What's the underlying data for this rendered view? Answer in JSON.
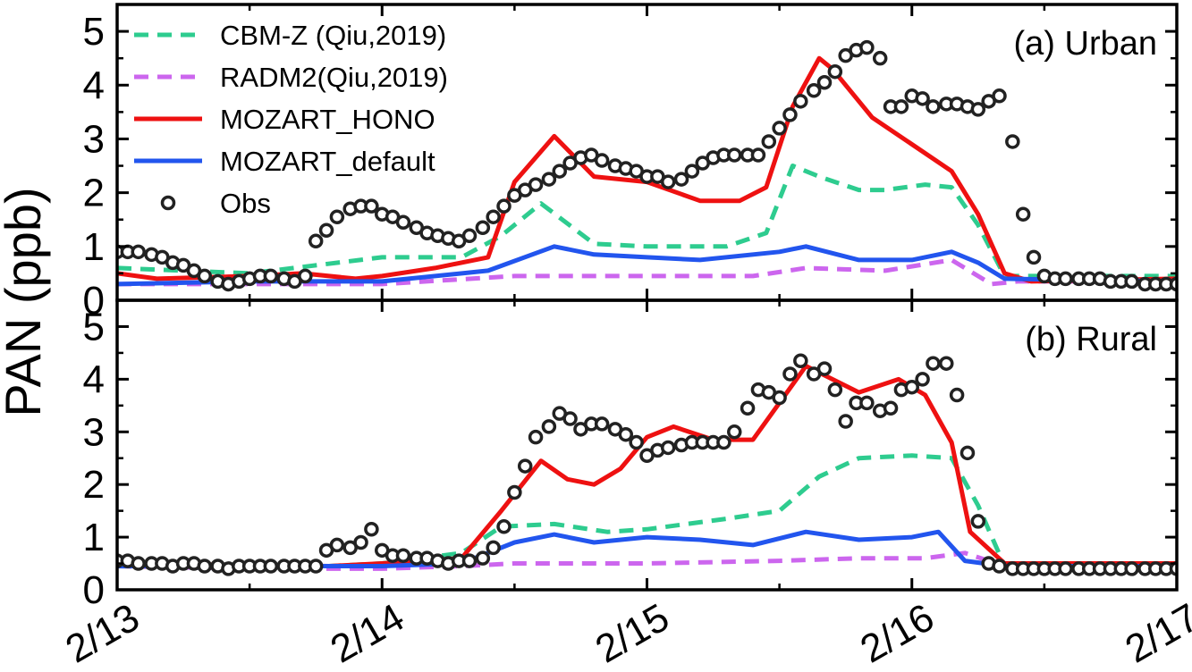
{
  "chart_data": {
    "type": "line",
    "ylabel": "PAN  (ppb)",
    "x_ticks": [
      "2/13",
      "2/14",
      "2/15",
      "2/16",
      "2/17"
    ],
    "xlim": [
      0,
      4
    ],
    "ylim": [
      0,
      5.5
    ],
    "y_ticks": [
      0,
      1,
      2,
      3,
      4,
      5
    ],
    "legend": {
      "placement": "top-left",
      "entries": [
        {
          "label": "CBM-Z (Qiu,2019)",
          "color": "#2ecc8f",
          "style": "dashed"
        },
        {
          "label": "RADM2(Qiu,2019)",
          "color": "#cc66ee",
          "style": "dashed"
        },
        {
          "label": "MOZART_HONO",
          "color": "#ee1111",
          "style": "solid"
        },
        {
          "label": "MOZART_default",
          "color": "#2255ee",
          "style": "solid"
        },
        {
          "label": "Obs",
          "color": "#222222",
          "style": "marker"
        }
      ]
    },
    "panels": [
      {
        "label": "(a) Urban",
        "series": [
          {
            "name": "CBM-Z (Qiu,2019)",
            "color": "#2ecc8f",
            "style": "dashed",
            "x": [
              0,
              0.5,
              1.0,
              1.3,
              1.45,
              1.6,
              1.8,
              2.0,
              2.3,
              2.45,
              2.55,
              2.65,
              2.8,
              2.9,
              3.05,
              3.15,
              3.25,
              3.35,
              4.0
            ],
            "y": [
              0.6,
              0.5,
              0.8,
              0.8,
              1.2,
              1.8,
              1.05,
              1.0,
              1.0,
              1.25,
              2.5,
              2.3,
              2.05,
              2.05,
              2.15,
              2.1,
              1.4,
              0.45,
              0.45
            ]
          },
          {
            "name": "RADM2(Qiu,2019)",
            "color": "#cc66ee",
            "style": "dashed",
            "x": [
              0,
              0.5,
              1.0,
              1.5,
              2.0,
              2.4,
              2.6,
              2.9,
              3.15,
              3.3,
              3.4,
              4.0
            ],
            "y": [
              0.3,
              0.3,
              0.3,
              0.45,
              0.45,
              0.45,
              0.6,
              0.55,
              0.75,
              0.3,
              0.35,
              0.35
            ]
          },
          {
            "name": "MOZART_HONO",
            "color": "#ee1111",
            "style": "solid",
            "x": [
              0,
              0.15,
              0.5,
              0.7,
              0.9,
              1.0,
              1.2,
              1.4,
              1.5,
              1.65,
              1.8,
              2.0,
              2.2,
              2.35,
              2.45,
              2.55,
              2.65,
              2.7,
              2.85,
              3.0,
              3.15,
              3.25,
              3.35,
              3.45,
              4.0
            ],
            "y": [
              0.5,
              0.4,
              0.45,
              0.5,
              0.4,
              0.45,
              0.6,
              0.8,
              2.2,
              3.05,
              2.3,
              2.2,
              1.85,
              1.85,
              2.1,
              3.6,
              4.5,
              4.3,
              3.4,
              2.9,
              2.4,
              1.6,
              0.5,
              0.35,
              0.4
            ]
          },
          {
            "name": "MOZART_default",
            "color": "#2255ee",
            "style": "solid",
            "x": [
              0,
              0.5,
              1.0,
              1.4,
              1.65,
              1.8,
              2.0,
              2.2,
              2.5,
              2.6,
              2.8,
              3.0,
              3.15,
              3.25,
              3.35,
              4.0
            ],
            "y": [
              0.3,
              0.35,
              0.35,
              0.55,
              1.0,
              0.85,
              0.8,
              0.75,
              0.9,
              1.0,
              0.75,
              0.75,
              0.9,
              0.7,
              0.4,
              0.35
            ]
          },
          {
            "name": "Obs",
            "color": "#222222",
            "style": "marker",
            "x": [
              0.0,
              0.04,
              0.08,
              0.13,
              0.17,
              0.21,
              0.25,
              0.29,
              0.33,
              0.38,
              0.42,
              0.46,
              0.5,
              0.54,
              0.58,
              0.63,
              0.67,
              0.71,
              0.75,
              0.79,
              0.83,
              0.88,
              0.92,
              0.96,
              1.0,
              1.04,
              1.08,
              1.13,
              1.17,
              1.21,
              1.25,
              1.29,
              1.33,
              1.38,
              1.42,
              1.46,
              1.5,
              1.54,
              1.58,
              1.63,
              1.67,
              1.71,
              1.75,
              1.79,
              1.83,
              1.88,
              1.92,
              1.96,
              2.0,
              2.04,
              2.08,
              2.13,
              2.17,
              2.21,
              2.25,
              2.29,
              2.33,
              2.38,
              2.42,
              2.46,
              2.5,
              2.54,
              2.58,
              2.63,
              2.67,
              2.71,
              2.75,
              2.79,
              2.83,
              2.88,
              2.92,
              2.96,
              3.0,
              3.04,
              3.08,
              3.13,
              3.17,
              3.21,
              3.25,
              3.29,
              3.33,
              3.38,
              3.42,
              3.46,
              3.5,
              3.54,
              3.58,
              3.63,
              3.67,
              3.71,
              3.75,
              3.79,
              3.83,
              3.88,
              3.92,
              3.96,
              4.0
            ],
            "y": [
              0.9,
              0.9,
              0.9,
              0.85,
              0.8,
              0.7,
              0.65,
              0.55,
              0.45,
              0.35,
              0.3,
              0.35,
              0.4,
              0.45,
              0.45,
              0.4,
              0.35,
              0.45,
              1.1,
              1.3,
              1.55,
              1.7,
              1.75,
              1.75,
              1.6,
              1.55,
              1.45,
              1.35,
              1.25,
              1.2,
              1.15,
              1.1,
              1.2,
              1.35,
              1.55,
              1.75,
              1.95,
              2.05,
              2.15,
              2.25,
              2.4,
              2.55,
              2.65,
              2.7,
              2.6,
              2.5,
              2.45,
              2.4,
              2.3,
              2.3,
              2.2,
              2.25,
              2.4,
              2.55,
              2.65,
              2.7,
              2.7,
              2.7,
              2.7,
              2.95,
              3.2,
              3.45,
              3.7,
              3.9,
              4.05,
              4.25,
              4.55,
              4.65,
              4.7,
              4.5,
              3.6,
              3.6,
              3.8,
              3.75,
              3.6,
              3.65,
              3.65,
              3.6,
              3.55,
              3.7,
              3.8,
              2.95,
              1.6,
              0.8,
              0.45,
              0.4,
              0.4,
              0.4,
              0.4,
              0.4,
              0.35,
              0.35,
              0.35,
              0.3,
              0.3,
              0.3,
              0.3
            ]
          }
        ]
      },
      {
        "label": "(b) Rural",
        "series": [
          {
            "name": "CBM-Z (Qiu,2019)",
            "color": "#2ecc8f",
            "style": "dashed",
            "x": [
              0,
              0.5,
              0.8,
              1.0,
              1.3,
              1.45,
              1.65,
              1.85,
              2.0,
              2.3,
              2.5,
              2.65,
              2.8,
              3.0,
              3.15,
              3.25,
              3.35,
              4.0
            ],
            "y": [
              0.45,
              0.4,
              0.45,
              0.5,
              0.7,
              1.2,
              1.25,
              1.1,
              1.15,
              1.35,
              1.5,
              2.15,
              2.5,
              2.55,
              2.5,
              1.6,
              0.45,
              0.45
            ]
          },
          {
            "name": "RADM2(Qiu,2019)",
            "color": "#cc66ee",
            "style": "dashed",
            "x": [
              0,
              0.5,
              1.0,
              1.3,
              1.5,
              2.0,
              2.5,
              2.8,
              3.05,
              3.2,
              3.35,
              4.0
            ],
            "y": [
              0.45,
              0.4,
              0.4,
              0.45,
              0.5,
              0.5,
              0.55,
              0.6,
              0.6,
              0.7,
              0.45,
              0.45
            ]
          },
          {
            "name": "MOZART_HONO",
            "color": "#ee1111",
            "style": "solid",
            "x": [
              0,
              0.8,
              1.0,
              1.3,
              1.45,
              1.6,
              1.7,
              1.8,
              1.9,
              2.0,
              2.1,
              2.25,
              2.4,
              2.6,
              2.8,
              2.95,
              3.05,
              3.15,
              3.22,
              3.35,
              4.0
            ],
            "y": [
              0.5,
              0.45,
              0.5,
              0.6,
              1.5,
              2.45,
              2.1,
              2.0,
              2.3,
              2.9,
              3.1,
              2.85,
              2.85,
              4.25,
              3.75,
              4.0,
              3.7,
              2.8,
              1.1,
              0.5,
              0.5
            ]
          },
          {
            "name": "MOZART_default",
            "color": "#2255ee",
            "style": "solid",
            "x": [
              0,
              0.8,
              1.0,
              1.3,
              1.5,
              1.65,
              1.8,
              2.0,
              2.2,
              2.4,
              2.6,
              2.8,
              3.0,
              3.1,
              3.2,
              3.35,
              4.0
            ],
            "y": [
              0.45,
              0.45,
              0.45,
              0.5,
              0.9,
              1.05,
              0.9,
              1.0,
              0.95,
              0.85,
              1.1,
              0.95,
              1.0,
              1.1,
              0.55,
              0.45,
              0.45
            ]
          },
          {
            "name": "Obs",
            "color": "#222222",
            "style": "marker",
            "x": [
              0.0,
              0.04,
              0.08,
              0.13,
              0.17,
              0.21,
              0.25,
              0.29,
              0.33,
              0.38,
              0.42,
              0.46,
              0.5,
              0.54,
              0.58,
              0.63,
              0.67,
              0.71,
              0.75,
              0.79,
              0.83,
              0.88,
              0.92,
              0.96,
              1.0,
              1.04,
              1.08,
              1.13,
              1.17,
              1.21,
              1.25,
              1.29,
              1.33,
              1.38,
              1.42,
              1.46,
              1.5,
              1.54,
              1.58,
              1.63,
              1.67,
              1.71,
              1.75,
              1.79,
              1.83,
              1.88,
              1.92,
              1.96,
              2.0,
              2.04,
              2.08,
              2.13,
              2.17,
              2.21,
              2.25,
              2.29,
              2.33,
              2.38,
              2.42,
              2.46,
              2.5,
              2.54,
              2.58,
              2.63,
              2.67,
              2.71,
              2.75,
              2.79,
              2.83,
              2.88,
              2.92,
              2.96,
              3.0,
              3.04,
              3.08,
              3.13,
              3.17,
              3.21,
              3.25,
              3.29,
              3.33,
              3.38,
              3.42,
              3.46,
              3.5,
              3.54,
              3.58,
              3.63,
              3.67,
              3.71,
              3.75,
              3.79,
              3.83,
              3.88,
              3.92,
              3.96,
              4.0
            ],
            "y": [
              0.55,
              0.55,
              0.5,
              0.5,
              0.5,
              0.45,
              0.5,
              0.5,
              0.45,
              0.45,
              0.4,
              0.45,
              0.45,
              0.45,
              0.45,
              0.45,
              0.45,
              0.45,
              0.45,
              0.75,
              0.85,
              0.8,
              0.9,
              1.15,
              0.75,
              0.65,
              0.65,
              0.6,
              0.6,
              0.55,
              0.5,
              0.55,
              0.55,
              0.6,
              0.8,
              1.2,
              1.85,
              2.35,
              2.9,
              3.1,
              3.35,
              3.25,
              3.05,
              3.15,
              3.15,
              3.05,
              2.95,
              2.8,
              2.55,
              2.65,
              2.7,
              2.75,
              2.8,
              2.8,
              2.8,
              2.8,
              3.0,
              3.45,
              3.8,
              3.75,
              3.65,
              4.1,
              4.35,
              4.1,
              4.2,
              3.8,
              3.2,
              3.55,
              3.55,
              3.4,
              3.45,
              3.8,
              3.85,
              4.0,
              4.3,
              4.3,
              3.7,
              2.6,
              1.3,
              0.5,
              0.45,
              0.4,
              0.4,
              0.4,
              0.4,
              0.4,
              0.4,
              0.4,
              0.4,
              0.4,
              0.4,
              0.4,
              0.4,
              0.4,
              0.4,
              0.4,
              0.4
            ]
          }
        ]
      }
    ]
  }
}
